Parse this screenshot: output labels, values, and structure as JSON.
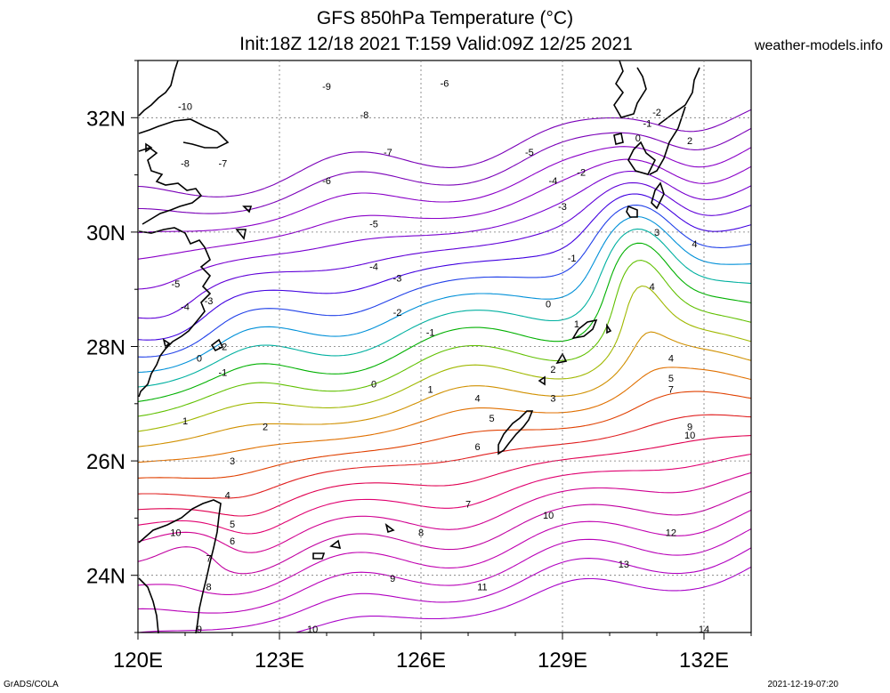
{
  "title": {
    "line1": "GFS 850hPa Temperature (°C)",
    "line2": "Init:18Z 12/18 2021 T:159 Valid:09Z 12/25 2021"
  },
  "site": "weather-models.info",
  "footer": {
    "left": "GrADS/COLA",
    "right": "2021-12-19-07:20"
  },
  "map": {
    "lon_labels": [
      "120E",
      "123E",
      "126E",
      "129E",
      "132E"
    ],
    "lat_labels": [
      "32N",
      "30N",
      "28N",
      "26N",
      "24N"
    ],
    "lon_range": [
      120,
      133
    ],
    "lat_range": [
      23,
      33
    ]
  },
  "contours": [
    {
      "level": -10,
      "color": "#7a00b8",
      "labels": [
        {
          "lon": 121.0,
          "lat": 32.2
        }
      ]
    },
    {
      "level": -9,
      "color": "#7a00b8",
      "labels": [
        {
          "lon": 124.0,
          "lat": 32.55
        }
      ]
    },
    {
      "level": -8,
      "color": "#8a00c8",
      "labels": [
        {
          "lon": 121.0,
          "lat": 31.2
        },
        {
          "lon": 124.8,
          "lat": 32.05
        }
      ]
    },
    {
      "level": -7,
      "color": "#8a00c8",
      "labels": [
        {
          "lon": 121.8,
          "lat": 31.2
        },
        {
          "lon": 125.3,
          "lat": 31.4
        }
      ]
    },
    {
      "level": -6,
      "color": "#7800d0",
      "labels": [
        {
          "lon": 124.0,
          "lat": 30.9
        },
        {
          "lon": 126.5,
          "lat": 32.6
        }
      ]
    },
    {
      "level": -5,
      "color": "#6000d8",
      "labels": [
        {
          "lon": 120.8,
          "lat": 29.1
        },
        {
          "lon": 125.0,
          "lat": 30.15
        },
        {
          "lon": 128.3,
          "lat": 31.4
        }
      ]
    },
    {
      "level": -4,
      "color": "#4000e0",
      "labels": [
        {
          "lon": 121.0,
          "lat": 28.7
        },
        {
          "lon": 125.0,
          "lat": 29.4
        },
        {
          "lon": 128.8,
          "lat": 30.9
        }
      ]
    },
    {
      "level": -3,
      "color": "#2040e8",
      "labels": [
        {
          "lon": 121.5,
          "lat": 28.8
        },
        {
          "lon": 125.5,
          "lat": 29.2
        },
        {
          "lon": 129.0,
          "lat": 30.45
        }
      ]
    },
    {
      "level": -2,
      "color": "#0090d8",
      "labels": [
        {
          "lon": 121.8,
          "lat": 28.0
        },
        {
          "lon": 125.5,
          "lat": 28.6
        },
        {
          "lon": 129.4,
          "lat": 31.05
        },
        {
          "lon": 131.0,
          "lat": 32.1
        }
      ]
    },
    {
      "level": -1,
      "color": "#00b0a0",
      "labels": [
        {
          "lon": 121.8,
          "lat": 27.55
        },
        {
          "lon": 126.2,
          "lat": 28.25
        },
        {
          "lon": 129.2,
          "lat": 29.55
        },
        {
          "lon": 130.8,
          "lat": 31.9
        }
      ]
    },
    {
      "level": 0,
      "color": "#00b000",
      "labels": [
        {
          "lon": 121.3,
          "lat": 27.8
        },
        {
          "lon": 125.0,
          "lat": 27.35
        },
        {
          "lon": 128.7,
          "lat": 28.75
        },
        {
          "lon": 130.6,
          "lat": 31.65
        }
      ]
    },
    {
      "level": 1,
      "color": "#60c000",
      "labels": [
        {
          "lon": 121.0,
          "lat": 26.7
        },
        {
          "lon": 126.2,
          "lat": 27.25
        },
        {
          "lon": 129.3,
          "lat": 28.4
        }
      ]
    },
    {
      "level": 2,
      "color": "#a0b800",
      "labels": [
        {
          "lon": 122.7,
          "lat": 26.6
        },
        {
          "lon": 128.8,
          "lat": 27.6
        },
        {
          "lon": 131.7,
          "lat": 31.6
        }
      ]
    },
    {
      "level": 3,
      "color": "#d09000",
      "labels": [
        {
          "lon": 122.0,
          "lat": 26.0
        },
        {
          "lon": 128.8,
          "lat": 27.1
        },
        {
          "lon": 131.0,
          "lat": 30.0
        }
      ]
    },
    {
      "level": 4,
      "color": "#e07000",
      "labels": [
        {
          "lon": 121.9,
          "lat": 25.4
        },
        {
          "lon": 127.2,
          "lat": 27.1
        },
        {
          "lon": 130.9,
          "lat": 29.05
        },
        {
          "lon": 131.3,
          "lat": 27.8
        },
        {
          "lon": 131.8,
          "lat": 29.8
        }
      ]
    },
    {
      "level": 5,
      "color": "#e04000",
      "labels": [
        {
          "lon": 122.0,
          "lat": 24.9
        },
        {
          "lon": 127.5,
          "lat": 26.75
        },
        {
          "lon": 131.3,
          "lat": 27.45
        }
      ]
    },
    {
      "level": 6,
      "color": "#e02020",
      "labels": [
        {
          "lon": 122.0,
          "lat": 24.6
        },
        {
          "lon": 127.2,
          "lat": 26.25
        }
      ]
    },
    {
      "level": 7,
      "color": "#e00050",
      "labels": [
        {
          "lon": 121.5,
          "lat": 24.3
        },
        {
          "lon": 127.0,
          "lat": 25.25
        },
        {
          "lon": 131.3,
          "lat": 27.25
        }
      ]
    },
    {
      "level": 8,
      "color": "#e00070",
      "labels": [
        {
          "lon": 121.5,
          "lat": 23.8
        },
        {
          "lon": 126.0,
          "lat": 24.75
        }
      ]
    },
    {
      "level": 9,
      "color": "#d00090",
      "labels": [
        {
          "lon": 121.3,
          "lat": 22.95
        },
        {
          "lon": 125.4,
          "lat": 23.95
        },
        {
          "lon": 131.7,
          "lat": 26.6
        }
      ]
    },
    {
      "level": 10,
      "color": "#c000a0",
      "labels": [
        {
          "lon": 120.8,
          "lat": 24.75
        },
        {
          "lon": 123.7,
          "lat": 23.0
        },
        {
          "lon": 128.7,
          "lat": 25.05
        },
        {
          "lon": 131.7,
          "lat": 26.45
        }
      ]
    },
    {
      "level": 11,
      "color": "#c000b0",
      "labels": [
        {
          "lon": 127.3,
          "lat": 23.8
        }
      ]
    },
    {
      "level": 12,
      "color": "#b800b8",
      "labels": [
        {
          "lon": 131.3,
          "lat": 24.75
        }
      ]
    },
    {
      "level": 13,
      "color": "#b000c0",
      "labels": [
        {
          "lon": 130.3,
          "lat": 24.2
        }
      ]
    },
    {
      "level": 14,
      "color": "#a800c8",
      "labels": [
        {
          "lon": 132.0,
          "lat": 22.8
        }
      ]
    }
  ]
}
